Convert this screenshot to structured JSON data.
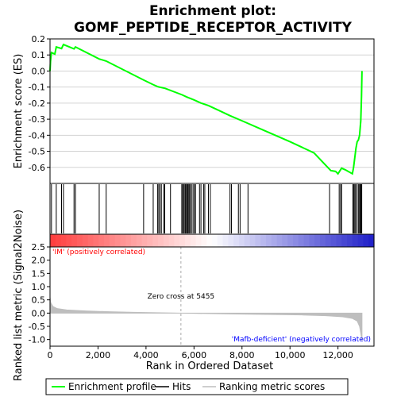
{
  "title_line1": "Enrichment plot:",
  "title_line2": "GOMF_PEPTIDE_RECEPTOR_ACTIVITY",
  "colors": {
    "es_line": "#00ff00",
    "hit": "#000000",
    "metric_fill": "#bebebe",
    "positive_label": "#ff0000",
    "negative_label": "#0000ff",
    "grid": "#d3d3d3"
  },
  "chart_data": [
    {
      "type": "line",
      "name": "enrichment-profile",
      "ylabel": "Enrichment score (ES)",
      "xlim": [
        0,
        13500
      ],
      "ylim": [
        -0.7,
        0.2
      ],
      "yticks": [
        0.2,
        0.1,
        0.0,
        -0.1,
        -0.2,
        -0.3,
        -0.4,
        -0.5,
        -0.6
      ],
      "ytick_labels": [
        "0.2",
        "0.1",
        "0.0",
        "-0.1",
        "-0.2",
        "-0.3",
        "-0.4",
        "-0.5",
        "-0.6"
      ],
      "grid": true,
      "points": [
        [
          0,
          0.0
        ],
        [
          20,
          0.06
        ],
        [
          60,
          0.115
        ],
        [
          200,
          0.105
        ],
        [
          260,
          0.15
        ],
        [
          480,
          0.14
        ],
        [
          560,
          0.165
        ],
        [
          1000,
          0.138
        ],
        [
          1060,
          0.15
        ],
        [
          2050,
          0.075
        ],
        [
          2340,
          0.062
        ],
        [
          3900,
          -0.056
        ],
        [
          4300,
          -0.085
        ],
        [
          4500,
          -0.098
        ],
        [
          4800,
          -0.108
        ],
        [
          5500,
          -0.148
        ],
        [
          5700,
          -0.162
        ],
        [
          6000,
          -0.18
        ],
        [
          6300,
          -0.2
        ],
        [
          6600,
          -0.215
        ],
        [
          7000,
          -0.243
        ],
        [
          7500,
          -0.278
        ],
        [
          8000,
          -0.31
        ],
        [
          9000,
          -0.375
        ],
        [
          10000,
          -0.44
        ],
        [
          11000,
          -0.51
        ],
        [
          11700,
          -0.62
        ],
        [
          11900,
          -0.625
        ],
        [
          12000,
          -0.64
        ],
        [
          12150,
          -0.605
        ],
        [
          12300,
          -0.615
        ],
        [
          12600,
          -0.64
        ],
        [
          12650,
          -0.6
        ],
        [
          12700,
          -0.54
        ],
        [
          12750,
          -0.48
        ],
        [
          12800,
          -0.44
        ],
        [
          12850,
          -0.43
        ],
        [
          12900,
          -0.4
        ],
        [
          12950,
          -0.31
        ],
        [
          12980,
          -0.16
        ],
        [
          13000,
          0.0
        ]
      ]
    },
    {
      "type": "scatter",
      "name": "hits",
      "x": [
        0,
        60,
        260,
        480,
        560,
        1000,
        1060,
        2050,
        2340,
        3900,
        4300,
        4480,
        4530,
        4580,
        4640,
        4740,
        4780,
        5020,
        5490,
        5530,
        5570,
        5620,
        5650,
        5690,
        5730,
        5760,
        5800,
        5840,
        5900,
        5960,
        6020,
        6060,
        6230,
        6290,
        6400,
        6450,
        6600,
        6680,
        7500,
        7560,
        7850,
        7920,
        8250,
        11650,
        12050,
        12110,
        12150,
        12620,
        12660,
        12700,
        12740,
        12800,
        12860,
        12900,
        12930,
        12960,
        12990
      ]
    },
    {
      "type": "area",
      "name": "ranking-metric",
      "ylabel": "Ranked list metric (Signal2Noise)",
      "xlabel": "Rank in Ordered Dataset",
      "xlim": [
        0,
        13500
      ],
      "ylim": [
        -1.25,
        2.5
      ],
      "xticks": [
        0,
        2000,
        4000,
        6000,
        8000,
        10000,
        12000
      ],
      "xtick_labels": [
        "0",
        "2,000",
        "4,000",
        "6,000",
        "8,000",
        "10,000",
        "12,000"
      ],
      "yticks": [
        2.5,
        2.0,
        1.5,
        1.0,
        0.5,
        0.0,
        -0.5,
        -1.0
      ],
      "ytick_labels": [
        "2.5",
        "2.0",
        "1.5",
        "1.0",
        "0.5",
        "0.0",
        "-0.5",
        "-1.0"
      ],
      "points": [
        [
          0,
          0.6
        ],
        [
          30,
          0.4
        ],
        [
          120,
          0.25
        ],
        [
          300,
          0.17
        ],
        [
          700,
          0.12
        ],
        [
          1500,
          0.08
        ],
        [
          2500,
          0.05
        ],
        [
          3500,
          0.03
        ],
        [
          4500,
          0.015
        ],
        [
          5455,
          0.0
        ],
        [
          6000,
          -0.01
        ],
        [
          7500,
          -0.03
        ],
        [
          9000,
          -0.05
        ],
        [
          10500,
          -0.07
        ],
        [
          11500,
          -0.1
        ],
        [
          12200,
          -0.14
        ],
        [
          12600,
          -0.2
        ],
        [
          12800,
          -0.3
        ],
        [
          12900,
          -0.5
        ],
        [
          12950,
          -0.75
        ],
        [
          13000,
          -1.05
        ]
      ],
      "gap": [
        5455,
        6800
      ],
      "zero_cross_text": "Zero cross at 5455",
      "positive_text": "'IM' (positively correlated)",
      "negative_text": "'Mafb-deficient' (negatively correlated)"
    }
  ],
  "legend": {
    "items": [
      {
        "label": "Enrichment profile"
      },
      {
        "label": "Hits"
      },
      {
        "label": "Ranking metric scores"
      }
    ]
  }
}
